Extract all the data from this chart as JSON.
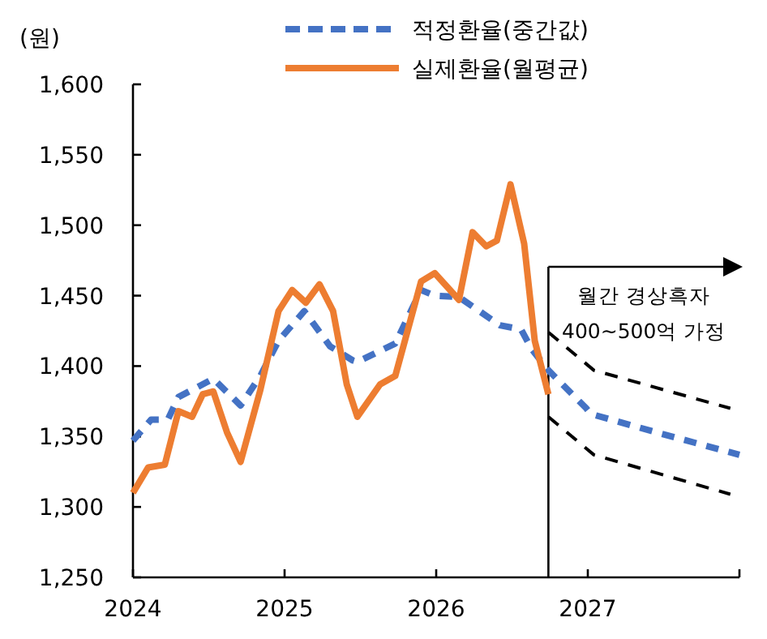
{
  "chart_data": {
    "type": "line",
    "ylabel": "(원)",
    "legend": "top",
    "xlim": [
      2024,
      2028
    ],
    "xticks": [
      2024,
      2025,
      2026,
      2027,
      {
        "value": 2028,
        "label": null
      }
    ],
    "ylim": [
      1250,
      1600
    ],
    "yticks": [
      {
        "value": 1250,
        "label": "1,250"
      },
      {
        "value": 1300,
        "label": "1,300"
      },
      {
        "value": 1350,
        "label": "1,350"
      },
      {
        "value": 1400,
        "label": "1,400"
      },
      {
        "value": 1450,
        "label": "1,450"
      },
      {
        "value": 1500,
        "label": "1,500"
      },
      {
        "value": 1550,
        "label": "1,550"
      },
      {
        "value": 1600,
        "label": "1,600"
      }
    ],
    "series": [
      {
        "name": "적정환율(중간값)",
        "color": "#4472c4",
        "line_style": "dashed",
        "x": [
          2024.0,
          2024.12,
          2024.23,
          2024.3,
          2024.53,
          2024.71,
          2024.84,
          2024.96,
          2025.13,
          2025.3,
          2025.45,
          2025.48,
          2025.73,
          2025.9,
          2025.99,
          2026.15,
          2026.42,
          2026.56,
          2026.63,
          2026.74,
          2026.99,
          2027.02,
          2027.45,
          2028.0
        ],
        "values": [
          1347,
          1362,
          1362,
          1378,
          1391,
          1372,
          1393,
          1418,
          1439,
          1414,
          1404,
          1403,
          1416,
          1454,
          1450,
          1449,
          1429,
          1426,
          1412,
          1397,
          1370,
          1366,
          1353,
          1337
        ]
      },
      {
        "name": "실제환율(월평균)",
        "color": "#ed7d31",
        "line_style": "solid",
        "x": [
          2024.0,
          2024.1,
          2024.21,
          2024.3,
          2024.39,
          2024.46,
          2024.53,
          2024.62,
          2024.71,
          2024.84,
          2024.96,
          2025.05,
          2025.14,
          2025.23,
          2025.32,
          2025.41,
          2025.48,
          2025.63,
          2025.73,
          2025.9,
          2025.99,
          2026.15,
          2026.24,
          2026.33,
          2026.4,
          2026.49,
          2026.58,
          2026.65,
          2026.74
        ],
        "values": [
          1310,
          1328,
          1330,
          1368,
          1364,
          1380,
          1382,
          1353,
          1332,
          1383,
          1439,
          1454,
          1445,
          1458,
          1439,
          1387,
          1364,
          1387,
          1393,
          1460,
          1466,
          1447,
          1495,
          1485,
          1489,
          1529,
          1487,
          1418,
          1380
        ]
      },
      {
        "color": "#000000",
        "line_style": "dashed",
        "x": [
          2026.74,
          2027.04,
          2027.94
        ],
        "values": [
          1424,
          1397,
          1370
        ]
      },
      {
        "color": "#000000",
        "line_style": "dashed",
        "x": [
          2026.74,
          2027.04,
          2027.94
        ],
        "values": [
          1364,
          1337,
          1309
        ]
      }
    ],
    "ref_lines": [
      {
        "axis": "x",
        "value": 2026.74,
        "label": "월간 경상흑자\n400~500억 가정",
        "color": "#000000"
      }
    ]
  }
}
